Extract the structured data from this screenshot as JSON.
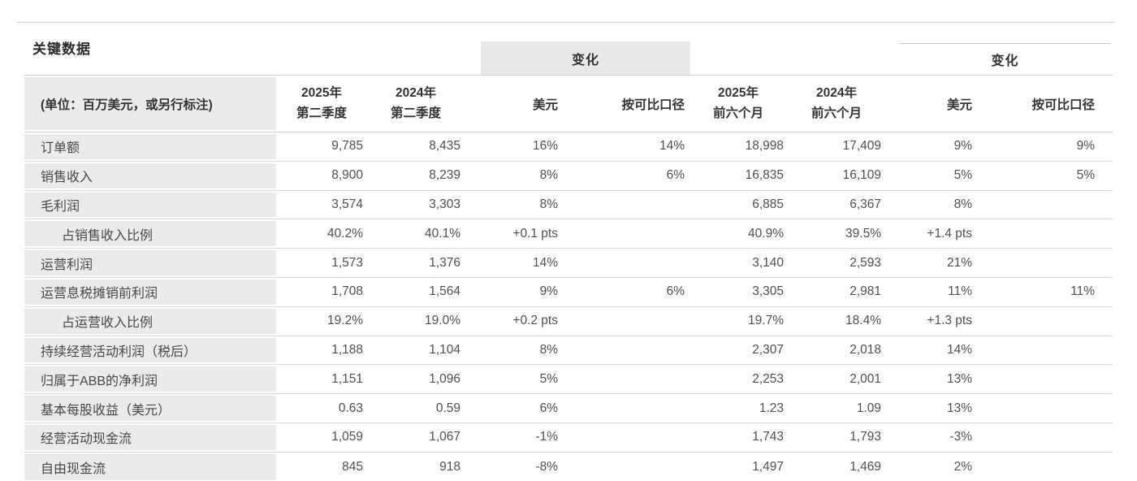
{
  "title": "关键数据",
  "table": {
    "unit_label": "(单位：百万美元，或另行标注)",
    "groups": {
      "quarter_change_label": "变化",
      "half_change_label": "变化"
    },
    "headers": {
      "q2_2025_line1": "2025年",
      "q2_2025_line2": "第二季度",
      "q2_2024_line1": "2024年",
      "q2_2024_line2": "第二季度",
      "q_usd": "美元",
      "q_comparable": "按可比口径",
      "h1_2025_line1": "2025年",
      "h1_2025_line2": "前六个月",
      "h1_2024_line1": "2024年",
      "h1_2024_line2": "前六个月",
      "h_usd": "美元",
      "h_comparable": "按可比口径"
    },
    "rows": [
      {
        "label": "订单额",
        "indent": false,
        "cells": [
          "9,785",
          "8,435",
          "16%",
          "14%",
          "18,998",
          "17,409",
          "9%",
          "9%"
        ]
      },
      {
        "label": "销售收入",
        "indent": false,
        "cells": [
          "8,900",
          "8,239",
          "8%",
          "6%",
          "16,835",
          "16,109",
          "5%",
          "5%"
        ]
      },
      {
        "label": "毛利润",
        "indent": false,
        "cells": [
          "3,574",
          "3,303",
          "8%",
          "",
          "6,885",
          "6,367",
          "8%",
          ""
        ]
      },
      {
        "label": "占销售收入比例",
        "indent": true,
        "cells": [
          "40.2%",
          "40.1%",
          "+0.1 pts",
          "",
          "40.9%",
          "39.5%",
          "+1.4 pts",
          ""
        ]
      },
      {
        "label": "运营利润",
        "indent": false,
        "cells": [
          "1,573",
          "1,376",
          "14%",
          "",
          "3,140",
          "2,593",
          "21%",
          ""
        ]
      },
      {
        "label": "运营息税摊销前利润",
        "indent": false,
        "cells": [
          "1,708",
          "1,564",
          "9%",
          "6%",
          "3,305",
          "2,981",
          "11%",
          "11%"
        ]
      },
      {
        "label": "占运营收入比例",
        "indent": true,
        "cells": [
          "19.2%",
          "19.0%",
          "+0.2 pts",
          "",
          "19.7%",
          "18.4%",
          "+1.3 pts",
          ""
        ]
      },
      {
        "label": "持续经营活动利润（税后）",
        "indent": false,
        "cells": [
          "1,188",
          "1,104",
          "8%",
          "",
          "2,307",
          "2,018",
          "14%",
          ""
        ]
      },
      {
        "label": "归属于ABB的净利润",
        "indent": false,
        "cells": [
          "1,151",
          "1,096",
          "5%",
          "",
          "2,253",
          "2,001",
          "13%",
          ""
        ]
      },
      {
        "label": "基本每股收益（美元）",
        "indent": false,
        "cells": [
          "0.63",
          "0.59",
          "6%",
          "",
          "1.23",
          "1.09",
          "13%",
          ""
        ]
      },
      {
        "label": "经营活动现金流",
        "indent": false,
        "cells": [
          "1,059",
          "1,067",
          "-1%",
          "",
          "1,743",
          "1,793",
          "-3%",
          ""
        ]
      },
      {
        "label": "自由现金流",
        "indent": false,
        "cells": [
          "845",
          "918",
          "-8%",
          "",
          "1,497",
          "1,469",
          "2%",
          ""
        ]
      }
    ]
  },
  "colors": {
    "label_column_bg": "#ebebeb",
    "change_box_bg": "#e9e9e9",
    "row_line": "#dadada",
    "top_rule": "#d4d4d4"
  }
}
